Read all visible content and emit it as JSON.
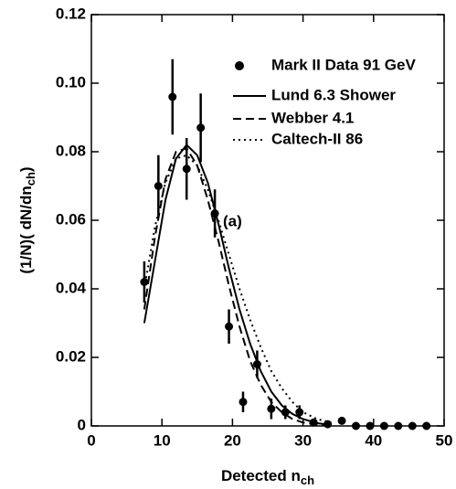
{
  "chart_data": {
    "type": "line",
    "y_label": {
      "main": "(1/N)( dN/dn",
      "sub": "ch",
      "end": ")"
    },
    "x_label": {
      "main": "Detected n",
      "sub": "ch"
    },
    "annotation": "(a)",
    "xlim": [
      0,
      50
    ],
    "xticks": [
      0,
      10,
      20,
      30,
      40,
      50
    ],
    "ylim": [
      0,
      0.12
    ],
    "yticks": [
      0,
      0.02,
      0.04,
      0.06,
      0.08,
      {
        "value": 0.1,
        "label": "0.10"
      },
      0.12
    ],
    "series": [
      {
        "name": "Mark II Data 91 GeV",
        "style": "markers",
        "color": "#000000",
        "x": [
          7.5,
          9.5,
          11.5,
          13.5,
          15.5,
          17.5,
          19.5,
          21.5,
          23.5,
          25.5,
          27.5,
          29.5,
          31.5,
          33.5,
          35.5,
          37.5,
          39.5,
          41.5,
          43.5,
          45.5,
          47.5
        ],
        "values": [
          0.042,
          0.07,
          0.096,
          0.075,
          0.087,
          0.062,
          0.029,
          0.007,
          0.018,
          0.005,
          0.004,
          0.004,
          0.001,
          0.0005,
          0.0015,
          0,
          0,
          0,
          0,
          0,
          0
        ],
        "errors": [
          0.006,
          0.009,
          0.011,
          0.009,
          0.01,
          0.007,
          0.005,
          0.003,
          0.004,
          0.003,
          0.002,
          0.002,
          0.001,
          0.0005,
          0.001,
          0,
          0,
          0,
          0,
          0,
          0
        ]
      },
      {
        "name": "Lund 6.3 Shower",
        "style": "solid",
        "color": "#000000",
        "x": [
          7.5,
          9,
          10.5,
          12,
          13.5,
          15,
          16.5,
          18,
          19.5,
          21,
          22.5,
          24,
          25.5,
          27,
          28.5,
          30,
          32,
          34
        ],
        "values": [
          0.03,
          0.048,
          0.066,
          0.078,
          0.082,
          0.079,
          0.071,
          0.059,
          0.046,
          0.034,
          0.024,
          0.016,
          0.01,
          0.006,
          0.0035,
          0.002,
          0.0008,
          0.0003
        ]
      },
      {
        "name": "Webber 4.1",
        "style": "dashed",
        "color": "#000000",
        "x": [
          7.5,
          9,
          10.5,
          12,
          13.5,
          15,
          16.5,
          18,
          19.5,
          21,
          22.5,
          24,
          25.5,
          27,
          28.5,
          30,
          32,
          34
        ],
        "values": [
          0.034,
          0.055,
          0.072,
          0.08,
          0.081,
          0.076,
          0.066,
          0.054,
          0.041,
          0.029,
          0.019,
          0.012,
          0.007,
          0.004,
          0.002,
          0.001,
          0.0004,
          0.0001
        ]
      },
      {
        "name": "Caltech-II 86",
        "style": "dotted",
        "color": "#000000",
        "x": [
          7.5,
          9,
          10.5,
          12,
          13.5,
          15,
          16.5,
          18,
          19.5,
          21,
          22.5,
          24,
          25.5,
          27,
          28.5,
          30,
          32,
          34
        ],
        "values": [
          0.04,
          0.058,
          0.071,
          0.078,
          0.079,
          0.076,
          0.069,
          0.06,
          0.05,
          0.04,
          0.031,
          0.023,
          0.016,
          0.011,
          0.007,
          0.004,
          0.002,
          0.001
        ]
      }
    ]
  }
}
